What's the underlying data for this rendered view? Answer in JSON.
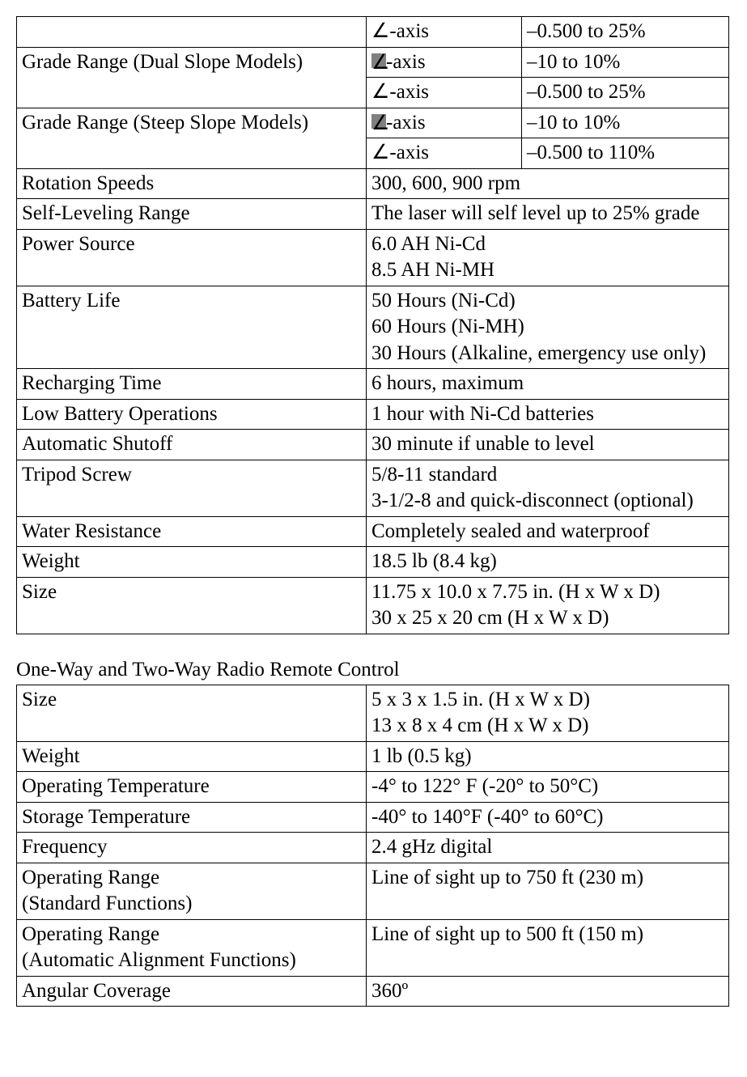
{
  "table1": {
    "angle_glyph": "∠",
    "rows_axis": [
      {
        "label": "",
        "axis_prefix_filled": false,
        "axis": "-axis",
        "value": "–0.500 to 25%"
      },
      {
        "label": "Grade Range (Dual Slope Models)",
        "rowspan": 2,
        "axis_prefix_filled": true,
        "axis": "-axis",
        "value": "–10 to 10%"
      },
      {
        "label": null,
        "axis_prefix_filled": false,
        "axis": "-axis",
        "value": "–0.500 to 25%"
      },
      {
        "label": "Grade Range (Steep Slope Models)",
        "rowspan": 2,
        "axis_prefix_filled": true,
        "axis": "-axis",
        "value": "–10 to 10%"
      },
      {
        "label": null,
        "axis_prefix_filled": false,
        "axis": "-axis",
        "value": "–0.500 to 110%"
      }
    ],
    "rows_full": [
      {
        "label": "Rotation Speeds",
        "value": "300, 600, 900 rpm"
      },
      {
        "label": "Self-Leveling Range",
        "value": "The laser will self level up to 25% grade"
      },
      {
        "label": "Power Source",
        "value": "6.0 AH Ni-Cd\n8.5 AH Ni-MH"
      },
      {
        "label": "Battery Life",
        "value": "50 Hours (Ni-Cd)\n60 Hours (Ni-MH)\n30 Hours (Alkaline, emergency use only)"
      },
      {
        "label": "Recharging Time",
        "value": "6 hours, maximum"
      },
      {
        "label": "Low Battery Operations",
        "value": "1 hour with Ni-Cd batteries"
      },
      {
        "label": "Automatic Shutoff",
        "value": "30 minute if unable to level"
      },
      {
        "label": "Tripod Screw",
        "value": "5/8-11 standard\n3-1/2-8 and quick-disconnect (optional)"
      },
      {
        "label": "Water Resistance",
        "value": "Completely sealed and waterproof"
      },
      {
        "label": "Weight",
        "value": "18.5 lb (8.4 kg)"
      },
      {
        "label": "Size",
        "value": "11.75 x 10.0 x 7.75 in. (H x W x D)\n30 x 25 x 20 cm (H x W x D)"
      }
    ]
  },
  "section2_title": "One-Way and Two-Way Radio Remote Control",
  "table2": {
    "rows": [
      {
        "label": "Size",
        "value": "5 x 3 x 1.5 in. (H x W x D)\n13 x 8 x 4 cm (H x W x D)"
      },
      {
        "label": "Weight",
        "value": "1 lb (0.5 kg)"
      },
      {
        "label": "Operating Temperature",
        "value": "-4° to 122° F (-20° to 50°C)"
      },
      {
        "label": "Storage Temperature",
        "value": "-40° to 140°F (-40° to 60°C)"
      },
      {
        "label": "Frequency",
        "value": "2.4 gHz digital"
      },
      {
        "label": "Operating Range\n(Standard Functions)",
        "value": "Line of sight up to 750 ft (230 m)"
      },
      {
        "label": "Operating Range\n(Automatic Alignment Functions)",
        "value": "Line of sight up to 500 ft (150 m)"
      },
      {
        "label": "Angular Coverage",
        "value": "360º"
      }
    ]
  }
}
